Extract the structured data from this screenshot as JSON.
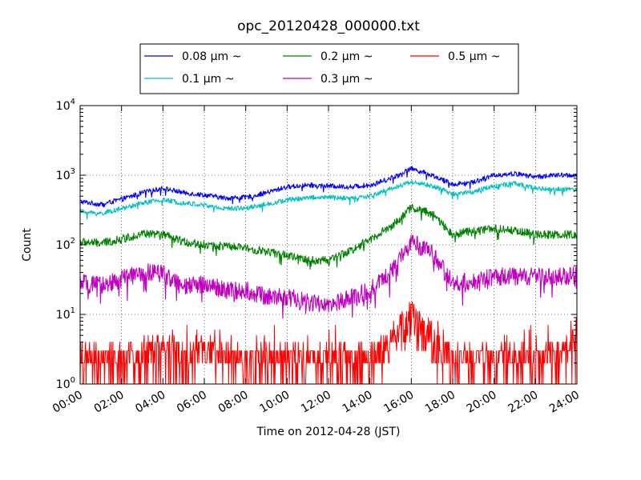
{
  "chart_data": {
    "type": "line",
    "title": "opc_20120428_000000.txt",
    "xlabel": "Time on 2012-04-28 (JST)",
    "ylabel": "Count",
    "yscale": "log",
    "ylim": [
      1,
      10000
    ],
    "xlim": [
      "00:00",
      "24:00"
    ],
    "grid": true,
    "legend_position": "top-center",
    "x_ticks": [
      "00:00",
      "02:00",
      "04:00",
      "06:00",
      "08:00",
      "10:00",
      "12:00",
      "14:00",
      "16:00",
      "18:00",
      "20:00",
      "22:00",
      "24:00"
    ],
    "y_ticks": [
      {
        "value": 1,
        "base": "10",
        "exp": "0"
      },
      {
        "value": 10,
        "base": "10",
        "exp": "1"
      },
      {
        "value": 100,
        "base": "10",
        "exp": "2"
      },
      {
        "value": 1000,
        "base": "10",
        "exp": "3"
      },
      {
        "value": 10000,
        "base": "10",
        "exp": "4"
      }
    ],
    "x_hours": [
      0,
      1,
      2,
      3,
      4,
      5,
      6,
      7,
      8,
      9,
      10,
      11,
      12,
      13,
      14,
      15,
      16,
      17,
      18,
      19,
      20,
      21,
      22,
      23,
      24
    ],
    "series": [
      {
        "name": "0.08 μm ~",
        "color": "#0000ff",
        "values": [
          420,
          380,
          450,
          560,
          650,
          560,
          520,
          470,
          480,
          560,
          680,
          720,
          700,
          680,
          720,
          900,
          1250,
          1000,
          740,
          800,
          1000,
          1050,
          950,
          1000,
          1000
        ]
      },
      {
        "name": "0.1 μm ~",
        "color": "#00bfbf",
        "values": [
          300,
          280,
          330,
          400,
          440,
          400,
          370,
          330,
          340,
          380,
          440,
          480,
          480,
          460,
          500,
          640,
          800,
          700,
          540,
          580,
          700,
          760,
          650,
          620,
          620
        ]
      },
      {
        "name": "0.2 μm ~",
        "color": "#008000",
        "values": [
          110,
          105,
          120,
          145,
          140,
          110,
          100,
          95,
          90,
          80,
          70,
          60,
          60,
          80,
          120,
          180,
          340,
          280,
          140,
          160,
          170,
          160,
          140,
          140,
          140
        ]
      },
      {
        "name": "0.3 μm ~",
        "color": "#bf00bf",
        "values": [
          28,
          26,
          32,
          40,
          40,
          24,
          28,
          22,
          22,
          18,
          18,
          15,
          13,
          17,
          22,
          40,
          110,
          75,
          28,
          30,
          35,
          35,
          35,
          35,
          36
        ]
      },
      {
        "name": "0.5 μm ~",
        "color": "#ff0000",
        "values": [
          2,
          2,
          2,
          2.5,
          3,
          2.5,
          2.5,
          2,
          2,
          2,
          2,
          2,
          2,
          2,
          2,
          3.5,
          9,
          4,
          2,
          2,
          2,
          2,
          2,
          2.5,
          3
        ]
      }
    ]
  }
}
